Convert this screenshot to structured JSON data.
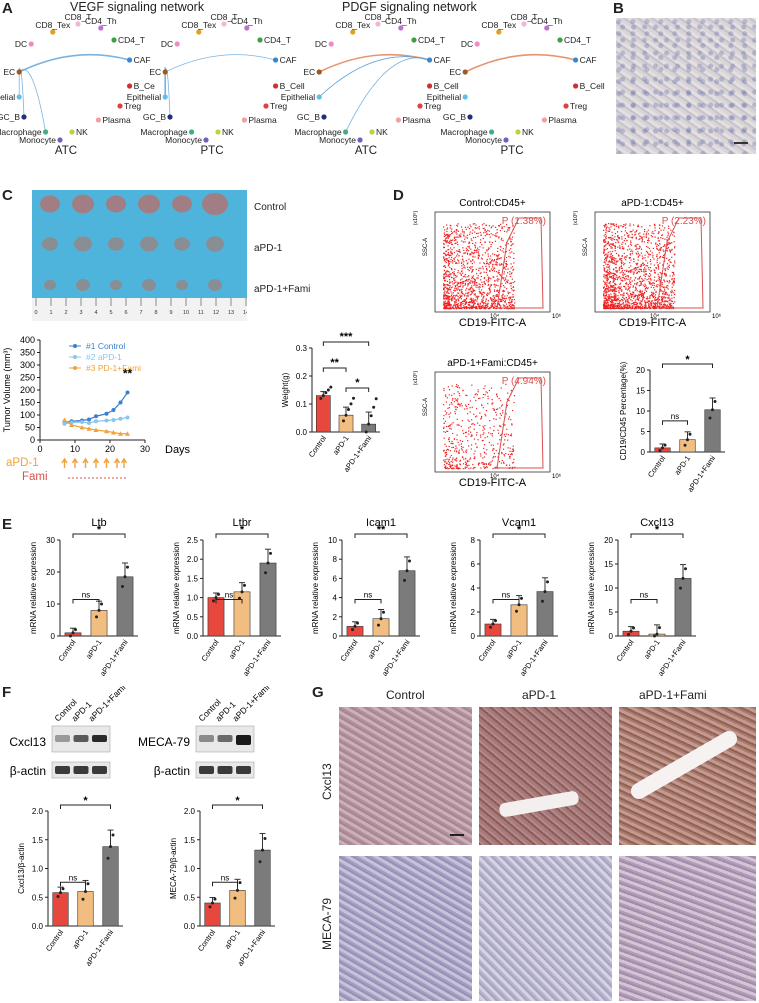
{
  "panels": {
    "A": "A",
    "B": "B",
    "C": "C",
    "D": "D",
    "E": "E",
    "F": "F",
    "G": "G"
  },
  "colors": {
    "red": "#e8473e",
    "tan": "#f2bd80",
    "gray": "#7b7b7b",
    "blue": "#3b7fd0",
    "lightblue": "#8cc5ec",
    "orange": "#f0a23c",
    "flow": "#ee2222",
    "gate": "#d95050",
    "tissue": "#c9a7b4",
    "bg_blue": "#4fb4dc"
  },
  "A": {
    "vegf_title": "VEGF signaling network",
    "pdgf_title": "PDGF signaling network",
    "node_labels_1": [
      "CD8_T",
      "CD4_Th",
      "CD8_Tex",
      "CD4_T",
      "DC",
      "CAF",
      "EC",
      "B_Ce",
      "Treg",
      "Epithelial",
      "Plasma",
      "GC_B",
      "Macrophage",
      "NK",
      "Monocyte"
    ],
    "node_labels": [
      "CD8_T",
      "CD4_Th",
      "CD8_Tex",
      "CD4_T",
      "DC",
      "CAF",
      "EC",
      "B_Cell",
      "Treg",
      "Epithelial",
      "Plasma",
      "GC_B",
      "Macrophage",
      "NK",
      "Monocyte"
    ],
    "group_labels": [
      "ATC",
      "PTC",
      "ATC",
      "PTC"
    ]
  },
  "C": {
    "row_labels": [
      "Control",
      "aPD-1",
      "aPD-1+Fami"
    ],
    "ruler_numbers": [
      "1",
      "2",
      "3",
      "4",
      "5",
      "6",
      "7",
      "8",
      "9",
      "10",
      "11",
      "12",
      "13",
      "14"
    ],
    "ruler_zero": "0",
    "line_chart": {
      "type": "line",
      "ylabel": "Tumor Volume (mm³)",
      "xlabel": "Days",
      "yticks": [
        "0",
        "50",
        "100",
        "150",
        "200",
        "250",
        "300",
        "350",
        "400"
      ],
      "xticks": [
        "0",
        "10",
        "20",
        "30"
      ],
      "ylim": [
        0,
        400
      ],
      "xlim": [
        0,
        30
      ],
      "series": [
        {
          "name": "#1 Control",
          "x": [
            7,
            9,
            12,
            14,
            16,
            19,
            21,
            23,
            25
          ],
          "y": [
            70,
            75,
            78,
            82,
            95,
            105,
            120,
            150,
            190
          ]
        },
        {
          "name": "#2 aPD-1",
          "x": [
            7,
            9,
            12,
            14,
            16,
            19,
            21,
            23,
            25
          ],
          "y": [
            65,
            70,
            72,
            68,
            75,
            78,
            80,
            85,
            90
          ]
        },
        {
          "name": "#3 PD-1+Fami",
          "x": [
            7,
            9,
            12,
            14,
            16,
            19,
            21,
            23,
            25
          ],
          "y": [
            80,
            60,
            50,
            45,
            40,
            35,
            30,
            25,
            25
          ]
        }
      ],
      "sig": "**",
      "treat1": "aPD-1",
      "treat2": "Fami",
      "arrow_days": [
        7,
        10,
        13,
        16,
        19,
        22,
        24
      ]
    },
    "bar_chart": {
      "type": "bar",
      "ylabel": "Weight(g)",
      "yticks": [
        "0.0",
        "0.1",
        "0.2",
        "0.3"
      ],
      "ylim": [
        0,
        0.3
      ],
      "categories": [
        "Control",
        "aPD-1",
        "aPD-1+Fami"
      ],
      "values": [
        0.13,
        0.06,
        0.028
      ],
      "sig": [
        "**",
        "***",
        "*"
      ]
    }
  },
  "D": {
    "plots": [
      {
        "title": "Control:CD45+",
        "gate": "P (1.38%)"
      },
      {
        "title": "aPD-1:CD45+",
        "gate": "P (2.23%)"
      },
      {
        "title": "aPD-1+Fami:CD45+",
        "gate": "P (4.94%)"
      }
    ],
    "xlabel": "CD19-FITC-A",
    "ylabel": "SSC-A",
    "x_ticks": [
      "10⁴",
      "10⁶"
    ],
    "y_exp": "(x10⁶)",
    "bar_chart": {
      "type": "bar",
      "ylabel": "CD19/CD45 Percentage(%)",
      "yticks": [
        "0",
        "5",
        "10",
        "15",
        "20"
      ],
      "ylim": [
        0,
        20
      ],
      "categories": [
        "Control",
        "aPD-1",
        "aPD-1+Fami"
      ],
      "values": [
        1.0,
        3.0,
        10.3
      ],
      "sig_short": "ns",
      "sig_long": "*"
    }
  },
  "E": {
    "ylabel": "mRNA relative expression",
    "categories": [
      "Control",
      "aPD-1",
      "aPD-1+Fami"
    ],
    "charts": [
      {
        "type": "bar",
        "title": "Ltb",
        "yticks": [
          "0",
          "10",
          "20",
          "30"
        ],
        "ylim": [
          0,
          30
        ],
        "values": [
          1.0,
          8.0,
          18.5
        ],
        "sig_short": "ns",
        "sig_long": "*"
      },
      {
        "type": "bar",
        "title": "Ltbr",
        "yticks": [
          "0.0",
          "0.5",
          "1.0",
          "1.5",
          "2.0",
          "2.5"
        ],
        "ylim": [
          0,
          2.5
        ],
        "values": [
          1.0,
          1.15,
          1.9
        ],
        "sig_short": "ns",
        "sig_long": "*"
      },
      {
        "type": "bar",
        "title": "Icam1",
        "yticks": [
          "0",
          "2",
          "4",
          "6",
          "8",
          "10"
        ],
        "ylim": [
          0,
          10
        ],
        "values": [
          1.0,
          1.8,
          6.8
        ],
        "sig_short": "ns",
        "sig_long": "**"
      },
      {
        "type": "bar",
        "title": "Vcam1",
        "yticks": [
          "0",
          "2",
          "4",
          "6",
          "8"
        ],
        "ylim": [
          0,
          8
        ],
        "values": [
          1.0,
          2.6,
          3.7
        ],
        "sig_short": "ns",
        "sig_long": "*"
      },
      {
        "type": "bar",
        "title": "Cxcl13",
        "yticks": [
          "0",
          "5",
          "10",
          "15",
          "20"
        ],
        "ylim": [
          0,
          20
        ],
        "values": [
          1.0,
          0.4,
          12.0
        ],
        "sig_short": "ns",
        "sig_long": "*"
      }
    ]
  },
  "F": {
    "lanes": [
      "Control",
      "aPD-1",
      "aPD-1+Fami"
    ],
    "blot1": "Cxcl13",
    "blot2": "MECA-79",
    "loading": "β-actin",
    "charts": [
      {
        "type": "bar",
        "ylabel": "Cxcl13/β-actin",
        "yticks": [
          "0.0",
          "0.5",
          "1.0",
          "1.5",
          "2.0"
        ],
        "ylim": [
          0,
          2.0
        ],
        "values": [
          0.58,
          0.6,
          1.38
        ],
        "sig_short": "ns",
        "sig_long": "*"
      },
      {
        "type": "bar",
        "ylabel": "MECA-79/β-actin",
        "yticks": [
          "0.0",
          "0.5",
          "1.0",
          "1.5",
          "2.0"
        ],
        "ylim": [
          0,
          2.0
        ],
        "values": [
          0.4,
          0.62,
          1.32
        ],
        "sig_short": "ns",
        "sig_long": "*"
      }
    ]
  },
  "G": {
    "cols": [
      "Control",
      "aPD-1",
      "aPD-1+Fami"
    ],
    "rows": [
      "Cxcl13",
      "MECA-79"
    ]
  }
}
